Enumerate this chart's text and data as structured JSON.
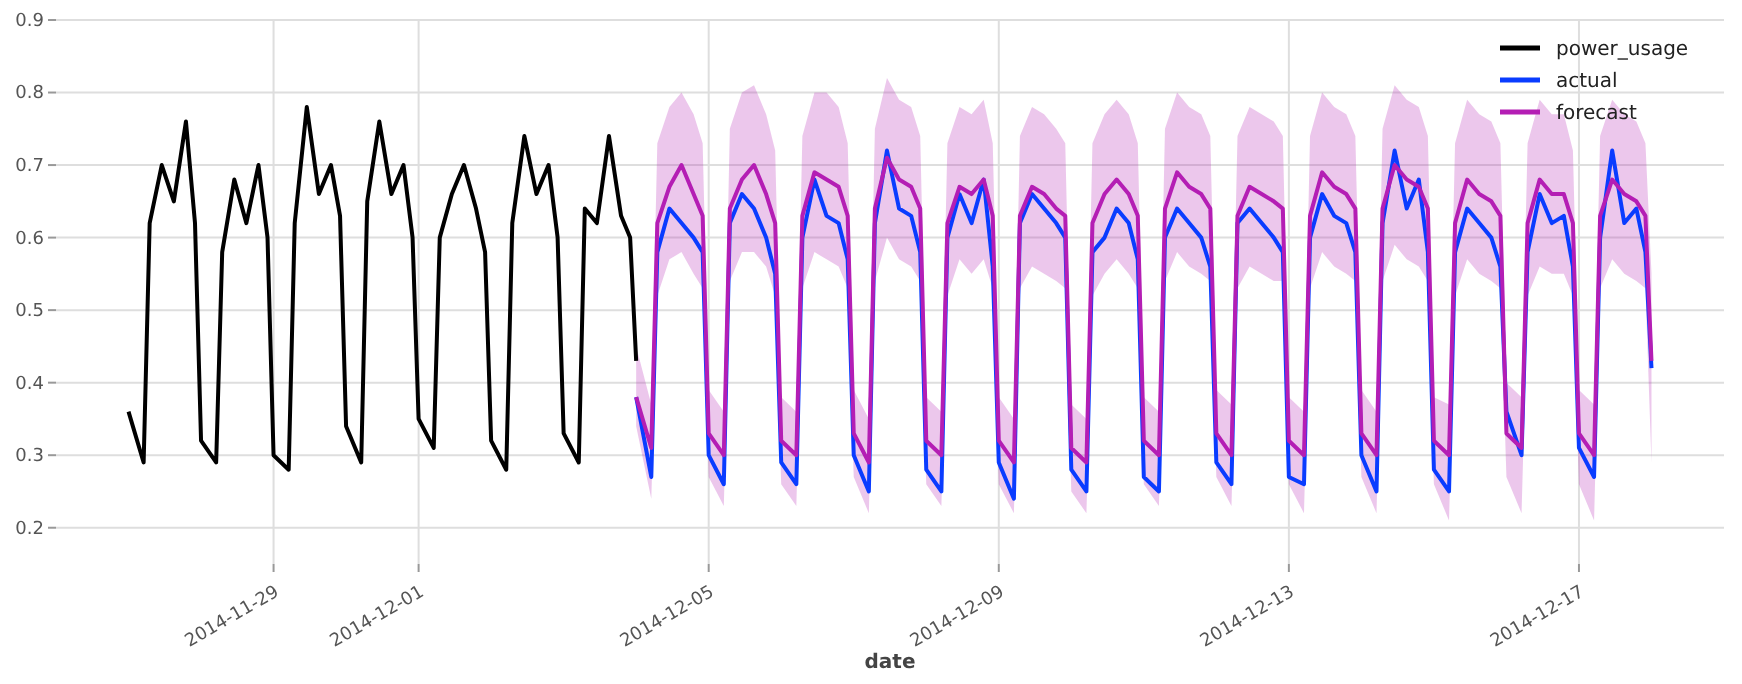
{
  "chart_data": {
    "type": "line",
    "xlabel": "date",
    "xlim": [
      "2014-11-26",
      "2014-12-19"
    ],
    "xticks": [
      "2014-11-29",
      "2014-12-01",
      "2014-12-05",
      "2014-12-09",
      "2014-12-13",
      "2014-12-17"
    ],
    "ylim": [
      0.15,
      0.9
    ],
    "yticks": [
      0.2,
      0.3,
      0.4,
      0.5,
      0.6,
      0.7,
      0.8,
      0.9
    ],
    "grid": true,
    "legend": "top right",
    "line_style": "solid",
    "marker": "none",
    "series": [
      {
        "name": "power_usage",
        "color": "#000000",
        "x": [
          "2014-11-27T00:00",
          "2014-11-27T05:00",
          "2014-11-27T07:00",
          "2014-11-27T11:00",
          "2014-11-27T15:00",
          "2014-11-27T19:00",
          "2014-11-27T22:00",
          "2014-11-28T00:00",
          "2014-11-28T05:00",
          "2014-11-28T07:00",
          "2014-11-28T11:00",
          "2014-11-28T15:00",
          "2014-11-28T19:00",
          "2014-11-28T22:00",
          "2014-11-29T00:00",
          "2014-11-29T05:00",
          "2014-11-29T07:00",
          "2014-11-29T11:00",
          "2014-11-29T15:00",
          "2014-11-29T19:00",
          "2014-11-29T22:00",
          "2014-11-30T00:00",
          "2014-11-30T05:00",
          "2014-11-30T07:00",
          "2014-11-30T11:00",
          "2014-11-30T15:00",
          "2014-11-30T19:00",
          "2014-11-30T22:00",
          "2014-12-01T00:00",
          "2014-12-01T05:00",
          "2014-12-01T07:00",
          "2014-12-01T11:00",
          "2014-12-01T15:00",
          "2014-12-01T19:00",
          "2014-12-01T22:00",
          "2014-12-02T00:00",
          "2014-12-02T05:00",
          "2014-12-02T07:00",
          "2014-12-02T11:00",
          "2014-12-02T15:00",
          "2014-12-02T19:00",
          "2014-12-02T22:00",
          "2014-12-03T00:00",
          "2014-12-03T05:00",
          "2014-12-03T07:00",
          "2014-12-03T11:00",
          "2014-12-03T15:00",
          "2014-12-03T19:00",
          "2014-12-03T22:00",
          "2014-12-04T00:00"
        ],
        "values": [
          0.36,
          0.29,
          0.62,
          0.7,
          0.65,
          0.76,
          0.62,
          0.32,
          0.29,
          0.58,
          0.68,
          0.62,
          0.7,
          0.6,
          0.3,
          0.28,
          0.62,
          0.78,
          0.66,
          0.7,
          0.63,
          0.34,
          0.29,
          0.65,
          0.76,
          0.66,
          0.7,
          0.6,
          0.35,
          0.31,
          0.6,
          0.66,
          0.7,
          0.64,
          0.58,
          0.32,
          0.28,
          0.62,
          0.74,
          0.66,
          0.7,
          0.6,
          0.33,
          0.29,
          0.64,
          0.62,
          0.74,
          0.63,
          0.6,
          0.43
        ]
      },
      {
        "name": "actual",
        "color": "#0a3cff",
        "x": [
          "2014-12-04T00:00",
          "2014-12-04T05:00",
          "2014-12-04T07:00",
          "2014-12-04T11:00",
          "2014-12-04T15:00",
          "2014-12-04T19:00",
          "2014-12-04T22:00",
          "2014-12-05T00:00",
          "2014-12-05T05:00",
          "2014-12-05T07:00",
          "2014-12-05T11:00",
          "2014-12-05T15:00",
          "2014-12-05T19:00",
          "2014-12-05T22:00",
          "2014-12-06T00:00",
          "2014-12-06T05:00",
          "2014-12-06T07:00",
          "2014-12-06T11:00",
          "2014-12-06T15:00",
          "2014-12-06T19:00",
          "2014-12-06T22:00",
          "2014-12-07T00:00",
          "2014-12-07T05:00",
          "2014-12-07T07:00",
          "2014-12-07T11:00",
          "2014-12-07T15:00",
          "2014-12-07T19:00",
          "2014-12-07T22:00",
          "2014-12-08T00:00",
          "2014-12-08T05:00",
          "2014-12-08T07:00",
          "2014-12-08T11:00",
          "2014-12-08T15:00",
          "2014-12-08T19:00",
          "2014-12-08T22:00",
          "2014-12-09T00:00",
          "2014-12-09T05:00",
          "2014-12-09T07:00",
          "2014-12-09T11:00",
          "2014-12-09T15:00",
          "2014-12-09T19:00",
          "2014-12-09T22:00",
          "2014-12-10T00:00",
          "2014-12-10T05:00",
          "2014-12-10T07:00",
          "2014-12-10T11:00",
          "2014-12-10T15:00",
          "2014-12-10T19:00",
          "2014-12-10T22:00",
          "2014-12-11T00:00",
          "2014-12-11T05:00",
          "2014-12-11T07:00",
          "2014-12-11T11:00",
          "2014-12-11T15:00",
          "2014-12-11T19:00",
          "2014-12-11T22:00",
          "2014-12-12T00:00",
          "2014-12-12T05:00",
          "2014-12-12T07:00",
          "2014-12-12T11:00",
          "2014-12-12T15:00",
          "2014-12-12T19:00",
          "2014-12-12T22:00",
          "2014-12-13T00:00",
          "2014-12-13T05:00",
          "2014-12-13T07:00",
          "2014-12-13T11:00",
          "2014-12-13T15:00",
          "2014-12-13T19:00",
          "2014-12-13T22:00",
          "2014-12-14T00:00",
          "2014-12-14T05:00",
          "2014-12-14T07:00",
          "2014-12-14T11:00",
          "2014-12-14T15:00",
          "2014-12-14T19:00",
          "2014-12-14T22:00",
          "2014-12-15T00:00",
          "2014-12-15T05:00",
          "2014-12-15T07:00",
          "2014-12-15T11:00",
          "2014-12-15T15:00",
          "2014-12-15T19:00",
          "2014-12-15T22:00",
          "2014-12-16T00:00",
          "2014-12-16T05:00",
          "2014-12-16T07:00",
          "2014-12-16T11:00",
          "2014-12-16T15:00",
          "2014-12-16T19:00",
          "2014-12-16T22:00",
          "2014-12-17T00:00",
          "2014-12-17T05:00",
          "2014-12-17T07:00",
          "2014-12-17T11:00",
          "2014-12-17T15:00",
          "2014-12-17T19:00",
          "2014-12-17T22:00",
          "2014-12-18T00:00"
        ],
        "values": [
          0.38,
          0.27,
          0.58,
          0.64,
          0.62,
          0.6,
          0.58,
          0.3,
          0.26,
          0.62,
          0.66,
          0.64,
          0.6,
          0.55,
          0.29,
          0.26,
          0.6,
          0.68,
          0.63,
          0.62,
          0.57,
          0.3,
          0.25,
          0.62,
          0.72,
          0.64,
          0.63,
          0.58,
          0.28,
          0.25,
          0.6,
          0.66,
          0.62,
          0.68,
          0.56,
          0.29,
          0.24,
          0.62,
          0.66,
          0.64,
          0.62,
          0.6,
          0.28,
          0.25,
          0.58,
          0.6,
          0.64,
          0.62,
          0.57,
          0.27,
          0.25,
          0.6,
          0.64,
          0.62,
          0.6,
          0.56,
          0.29,
          0.26,
          0.62,
          0.64,
          0.62,
          0.6,
          0.58,
          0.27,
          0.26,
          0.6,
          0.66,
          0.63,
          0.62,
          0.58,
          0.3,
          0.25,
          0.62,
          0.72,
          0.64,
          0.68,
          0.58,
          0.28,
          0.25,
          0.58,
          0.64,
          0.62,
          0.6,
          0.56,
          0.36,
          0.3,
          0.58,
          0.66,
          0.62,
          0.63,
          0.56,
          0.31,
          0.27,
          0.6,
          0.72,
          0.62,
          0.64,
          0.58,
          0.42
        ]
      },
      {
        "name": "forecast",
        "color": "#b41eb4",
        "x": [
          "2014-12-04T00:00",
          "2014-12-04T05:00",
          "2014-12-04T07:00",
          "2014-12-04T11:00",
          "2014-12-04T15:00",
          "2014-12-04T19:00",
          "2014-12-04T22:00",
          "2014-12-05T00:00",
          "2014-12-05T05:00",
          "2014-12-05T07:00",
          "2014-12-05T11:00",
          "2014-12-05T15:00",
          "2014-12-05T19:00",
          "2014-12-05T22:00",
          "2014-12-06T00:00",
          "2014-12-06T05:00",
          "2014-12-06T07:00",
          "2014-12-06T11:00",
          "2014-12-06T15:00",
          "2014-12-06T19:00",
          "2014-12-06T22:00",
          "2014-12-07T00:00",
          "2014-12-07T05:00",
          "2014-12-07T07:00",
          "2014-12-07T11:00",
          "2014-12-07T15:00",
          "2014-12-07T19:00",
          "2014-12-07T22:00",
          "2014-12-08T00:00",
          "2014-12-08T05:00",
          "2014-12-08T07:00",
          "2014-12-08T11:00",
          "2014-12-08T15:00",
          "2014-12-08T19:00",
          "2014-12-08T22:00",
          "2014-12-09T00:00",
          "2014-12-09T05:00",
          "2014-12-09T07:00",
          "2014-12-09T11:00",
          "2014-12-09T15:00",
          "2014-12-09T19:00",
          "2014-12-09T22:00",
          "2014-12-10T00:00",
          "2014-12-10T05:00",
          "2014-12-10T07:00",
          "2014-12-10T11:00",
          "2014-12-10T15:00",
          "2014-12-10T19:00",
          "2014-12-10T22:00",
          "2014-12-11T00:00",
          "2014-12-11T05:00",
          "2014-12-11T07:00",
          "2014-12-11T11:00",
          "2014-12-11T15:00",
          "2014-12-11T19:00",
          "2014-12-11T22:00",
          "2014-12-12T00:00",
          "2014-12-12T05:00",
          "2014-12-12T07:00",
          "2014-12-12T11:00",
          "2014-12-12T15:00",
          "2014-12-12T19:00",
          "2014-12-12T22:00",
          "2014-12-13T00:00",
          "2014-12-13T05:00",
          "2014-12-13T07:00",
          "2014-12-13T11:00",
          "2014-12-13T15:00",
          "2014-12-13T19:00",
          "2014-12-13T22:00",
          "2014-12-14T00:00",
          "2014-12-14T05:00",
          "2014-12-14T07:00",
          "2014-12-14T11:00",
          "2014-12-14T15:00",
          "2014-12-14T19:00",
          "2014-12-14T22:00",
          "2014-12-15T00:00",
          "2014-12-15T05:00",
          "2014-12-15T07:00",
          "2014-12-15T11:00",
          "2014-12-15T15:00",
          "2014-12-15T19:00",
          "2014-12-15T22:00",
          "2014-12-16T00:00",
          "2014-12-16T05:00",
          "2014-12-16T07:00",
          "2014-12-16T11:00",
          "2014-12-16T15:00",
          "2014-12-16T19:00",
          "2014-12-16T22:00",
          "2014-12-17T00:00",
          "2014-12-17T05:00",
          "2014-12-17T07:00",
          "2014-12-17T11:00",
          "2014-12-17T15:00",
          "2014-12-17T19:00",
          "2014-12-17T22:00",
          "2014-12-18T00:00"
        ],
        "values": [
          0.38,
          0.31,
          0.62,
          0.67,
          0.7,
          0.66,
          0.63,
          0.33,
          0.3,
          0.64,
          0.68,
          0.7,
          0.66,
          0.62,
          0.32,
          0.3,
          0.63,
          0.69,
          0.68,
          0.67,
          0.63,
          0.33,
          0.29,
          0.64,
          0.71,
          0.68,
          0.67,
          0.64,
          0.32,
          0.3,
          0.62,
          0.67,
          0.66,
          0.68,
          0.63,
          0.32,
          0.29,
          0.63,
          0.67,
          0.66,
          0.64,
          0.63,
          0.31,
          0.29,
          0.62,
          0.66,
          0.68,
          0.66,
          0.63,
          0.32,
          0.3,
          0.64,
          0.69,
          0.67,
          0.66,
          0.64,
          0.33,
          0.3,
          0.63,
          0.67,
          0.66,
          0.65,
          0.64,
          0.32,
          0.3,
          0.63,
          0.69,
          0.67,
          0.66,
          0.64,
          0.33,
          0.3,
          0.64,
          0.7,
          0.68,
          0.67,
          0.64,
          0.32,
          0.3,
          0.62,
          0.68,
          0.66,
          0.65,
          0.63,
          0.33,
          0.31,
          0.62,
          0.68,
          0.66,
          0.66,
          0.62,
          0.33,
          0.3,
          0.63,
          0.68,
          0.66,
          0.65,
          0.63,
          0.43
        ],
        "lower": [
          0.34,
          0.24,
          0.52,
          0.57,
          0.58,
          0.55,
          0.53,
          0.27,
          0.23,
          0.54,
          0.58,
          0.58,
          0.56,
          0.52,
          0.26,
          0.23,
          0.53,
          0.58,
          0.57,
          0.56,
          0.53,
          0.27,
          0.22,
          0.54,
          0.6,
          0.57,
          0.56,
          0.54,
          0.26,
          0.23,
          0.52,
          0.57,
          0.55,
          0.57,
          0.53,
          0.26,
          0.22,
          0.53,
          0.56,
          0.55,
          0.54,
          0.53,
          0.25,
          0.22,
          0.52,
          0.55,
          0.57,
          0.55,
          0.53,
          0.26,
          0.23,
          0.54,
          0.58,
          0.56,
          0.55,
          0.54,
          0.27,
          0.23,
          0.53,
          0.56,
          0.55,
          0.54,
          0.54,
          0.26,
          0.22,
          0.53,
          0.58,
          0.56,
          0.55,
          0.54,
          0.27,
          0.22,
          0.54,
          0.59,
          0.57,
          0.56,
          0.54,
          0.26,
          0.21,
          0.52,
          0.57,
          0.55,
          0.54,
          0.53,
          0.27,
          0.22,
          0.52,
          0.56,
          0.55,
          0.55,
          0.52,
          0.26,
          0.21,
          0.53,
          0.57,
          0.55,
          0.54,
          0.53,
          0.29
        ],
        "upper": [
          0.45,
          0.37,
          0.73,
          0.78,
          0.8,
          0.77,
          0.73,
          0.39,
          0.36,
          0.75,
          0.8,
          0.81,
          0.77,
          0.72,
          0.38,
          0.36,
          0.74,
          0.8,
          0.8,
          0.78,
          0.73,
          0.39,
          0.35,
          0.75,
          0.82,
          0.79,
          0.78,
          0.74,
          0.38,
          0.36,
          0.73,
          0.78,
          0.77,
          0.79,
          0.73,
          0.38,
          0.35,
          0.74,
          0.78,
          0.77,
          0.75,
          0.73,
          0.37,
          0.35,
          0.73,
          0.77,
          0.79,
          0.77,
          0.73,
          0.38,
          0.36,
          0.75,
          0.8,
          0.78,
          0.77,
          0.74,
          0.39,
          0.37,
          0.74,
          0.78,
          0.77,
          0.76,
          0.74,
          0.38,
          0.36,
          0.74,
          0.8,
          0.78,
          0.77,
          0.74,
          0.39,
          0.36,
          0.75,
          0.81,
          0.79,
          0.78,
          0.74,
          0.38,
          0.37,
          0.73,
          0.79,
          0.77,
          0.76,
          0.73,
          0.4,
          0.38,
          0.73,
          0.79,
          0.77,
          0.77,
          0.72,
          0.39,
          0.37,
          0.74,
          0.79,
          0.77,
          0.76,
          0.73,
          0.55
        ]
      }
    ]
  }
}
